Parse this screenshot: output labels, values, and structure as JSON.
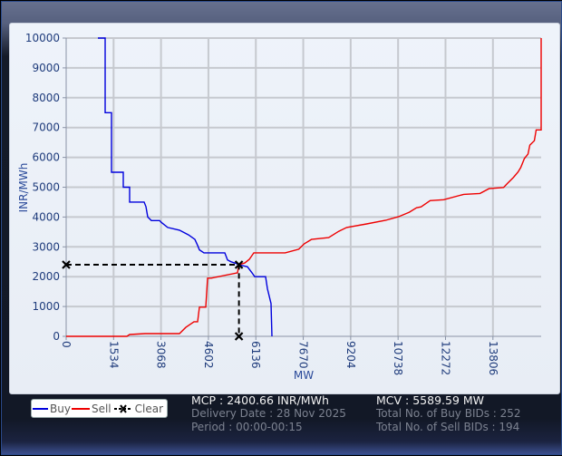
{
  "chart_data": {
    "type": "line",
    "title": "",
    "xlabel": "MW",
    "ylabel": "INR/MWh",
    "xlim": [
      0,
      15366
    ],
    "ylim": [
      0,
      10000
    ],
    "x_ticks": [
      0,
      1534,
      3068,
      4602,
      6136,
      7670,
      9204,
      10738,
      12272,
      13806
    ],
    "y_ticks": [
      0,
      1000,
      2000,
      3000,
      4000,
      5000,
      6000,
      7000,
      8000,
      9000,
      10000
    ],
    "grid": true,
    "legend_position": "bottom-left",
    "series": [
      {
        "name": "Buy",
        "color": "#0000dd",
        "points": [
          [
            1026,
            10000
          ],
          [
            1261,
            10000
          ],
          [
            1261,
            7500
          ],
          [
            1466,
            7500
          ],
          [
            1466,
            5500
          ],
          [
            1525,
            5500
          ],
          [
            1848,
            5500
          ],
          [
            1848,
            5000
          ],
          [
            2053,
            5000
          ],
          [
            2053,
            4500
          ],
          [
            2522,
            4500
          ],
          [
            2580,
            4350
          ],
          [
            2639,
            4000
          ],
          [
            2756,
            3880
          ],
          [
            3020,
            3880
          ],
          [
            3079,
            3820
          ],
          [
            3284,
            3650
          ],
          [
            3666,
            3560
          ],
          [
            3959,
            3400
          ],
          [
            4164,
            3250
          ],
          [
            4252,
            3050
          ],
          [
            4310,
            2900
          ],
          [
            4457,
            2800
          ],
          [
            5132,
            2800
          ],
          [
            5220,
            2560
          ],
          [
            5337,
            2500
          ],
          [
            5484,
            2450
          ],
          [
            5590,
            2400
          ],
          [
            5865,
            2330
          ],
          [
            6012,
            2130
          ],
          [
            6100,
            2000
          ],
          [
            6452,
            2000
          ],
          [
            6511,
            1600
          ],
          [
            6628,
            1100
          ],
          [
            6657,
            0
          ]
        ]
      },
      {
        "name": "Sell",
        "color": "#ee0000",
        "points": [
          [
            0,
            0
          ],
          [
            1965,
            0
          ],
          [
            2053,
            60
          ],
          [
            2551,
            90
          ],
          [
            3666,
            90
          ],
          [
            3871,
            300
          ],
          [
            4135,
            490
          ],
          [
            4252,
            490
          ],
          [
            4310,
            980
          ],
          [
            4516,
            980
          ],
          [
            4574,
            1950
          ],
          [
            4692,
            1950
          ],
          [
            5542,
            2130
          ],
          [
            5590,
            2400
          ],
          [
            5777,
            2460
          ],
          [
            5924,
            2580
          ],
          [
            6071,
            2800
          ],
          [
            7084,
            2800
          ],
          [
            7524,
            2920
          ],
          [
            7699,
            3100
          ],
          [
            7934,
            3250
          ],
          [
            8491,
            3310
          ],
          [
            8814,
            3520
          ],
          [
            9077,
            3650
          ],
          [
            9721,
            3770
          ],
          [
            10337,
            3890
          ],
          [
            10748,
            4010
          ],
          [
            11100,
            4160
          ],
          [
            11334,
            4310
          ],
          [
            11481,
            4340
          ],
          [
            11775,
            4550
          ],
          [
            12214,
            4580
          ],
          [
            12859,
            4760
          ],
          [
            13386,
            4790
          ],
          [
            13680,
            4950
          ],
          [
            14149,
            4990
          ],
          [
            14266,
            5120
          ],
          [
            14471,
            5330
          ],
          [
            14618,
            5510
          ],
          [
            14706,
            5660
          ],
          [
            14823,
            5960
          ],
          [
            14940,
            6110
          ],
          [
            14999,
            6410
          ],
          [
            15146,
            6560
          ],
          [
            15204,
            6920
          ],
          [
            15366,
            6920
          ],
          [
            15366,
            10000
          ]
        ]
      }
    ],
    "clearing_point": {
      "name": "Clear",
      "x": 5589.59,
      "y": 2400.66,
      "color": "#000000"
    }
  },
  "legend": {
    "items": [
      {
        "label": "Buy",
        "color": "#0000dd"
      },
      {
        "label": "Sell",
        "color": "#ee0000"
      },
      {
        "label": "Clear",
        "color": "#000000"
      }
    ]
  },
  "info": {
    "mcp": "MCP : 2400.66 INR/MWh",
    "delivery_date": "Delivery Date : 28 Nov 2025",
    "period": "Period :  00:00-00:15",
    "mcv": "MCV : 5589.59 MW",
    "total_buy_bids": "Total No. of Buy BIDs : 252",
    "total_sell_bids": "Total No. of Sell BIDs : 194"
  }
}
